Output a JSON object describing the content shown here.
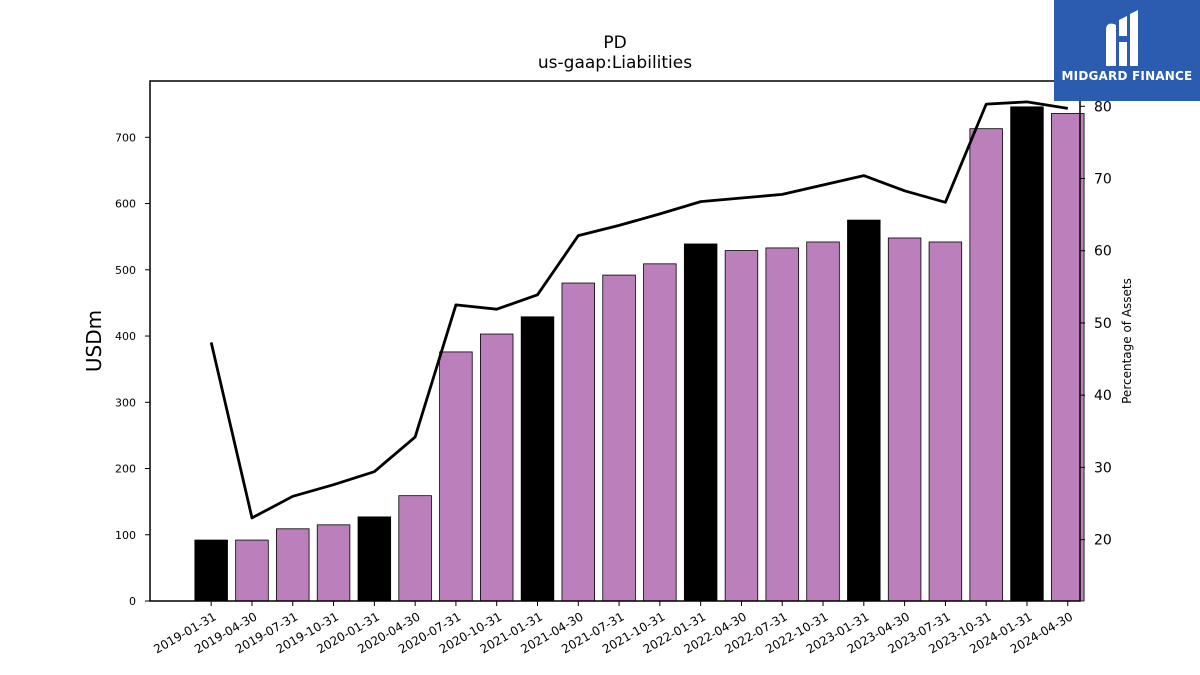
{
  "chart_data": {
    "type": "bar",
    "title": "PD",
    "subtitle": "us-gaap:Liabilities",
    "ylabel": "USDm",
    "y2label": "Percentage of Assets",
    "ylim": [
      0,
      785
    ],
    "y2lim": [
      11.5,
      83.5
    ],
    "yticks": [
      0,
      100,
      200,
      300,
      400,
      500,
      600,
      700
    ],
    "y2ticks": [
      20,
      30,
      40,
      50,
      60,
      70,
      80
    ],
    "categories": [
      "2019-01-31",
      "2019-04-30",
      "2019-07-31",
      "2019-10-31",
      "2020-01-31",
      "2020-04-30",
      "2020-07-31",
      "2020-10-31",
      "2021-01-31",
      "2021-04-30",
      "2021-07-31",
      "2021-10-31",
      "2022-01-31",
      "2022-04-30",
      "2022-07-31",
      "2022-10-31",
      "2023-01-31",
      "2023-04-30",
      "2023-07-31",
      "2023-10-31",
      "2024-01-31",
      "2024-04-30"
    ],
    "series": [
      {
        "type": "bar",
        "axis": "left",
        "values": [
          92,
          92,
          109,
          115,
          127,
          159,
          376,
          403,
          429,
          480,
          492,
          509,
          539,
          529,
          533,
          542,
          575,
          548,
          542,
          713,
          746,
          736
        ],
        "colors": [
          "#000000",
          "#bb7fbc",
          "#bb7fbc",
          "#bb7fbc",
          "#000000",
          "#bb7fbc",
          "#bb7fbc",
          "#bb7fbc",
          "#000000",
          "#bb7fbc",
          "#bb7fbc",
          "#bb7fbc",
          "#000000",
          "#bb7fbc",
          "#bb7fbc",
          "#bb7fbc",
          "#000000",
          "#bb7fbc",
          "#bb7fbc",
          "#bb7fbc",
          "#000000",
          "#bb7fbc"
        ]
      },
      {
        "type": "line",
        "axis": "right",
        "color": "#000000",
        "values": [
          47.3,
          23.0,
          26.0,
          27.6,
          29.4,
          34.2,
          52.5,
          51.9,
          53.9,
          62.1,
          63.5,
          65.1,
          66.8,
          67.3,
          67.8,
          69.1,
          70.4,
          68.3,
          66.7,
          80.3,
          80.6,
          79.7
        ]
      }
    ],
    "colors": {
      "bar_default": "#bb7fbc",
      "bar_highlight": "#000000",
      "line": "#000000"
    },
    "grid": false
  },
  "logo": {
    "text": "MIDGARD FINANCE",
    "icon": "midgard-logo-icon",
    "background": "#2b5cb0"
  }
}
